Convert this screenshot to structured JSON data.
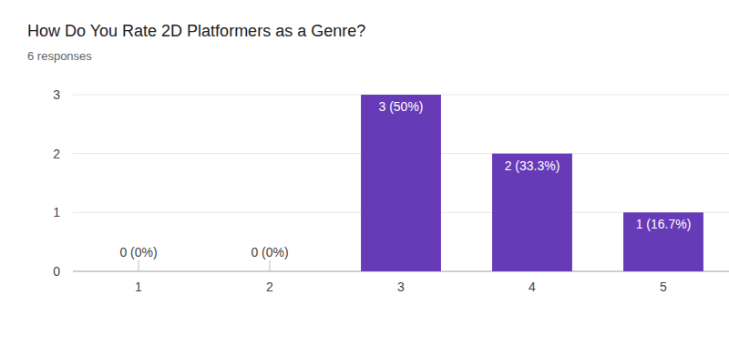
{
  "chart_data": {
    "type": "bar",
    "title": "How Do You Rate 2D Platformers as a Genre?",
    "subtitle": "6 responses",
    "categories": [
      "1",
      "2",
      "3",
      "4",
      "5"
    ],
    "values": [
      0,
      0,
      3,
      2,
      1
    ],
    "value_labels": [
      "0 (0%)",
      "0 (0%)",
      "3 (50%)",
      "2 (33.3%)",
      "1 (16.7%)"
    ],
    "color": "#673ab7",
    "ylim": [
      0,
      3
    ],
    "yticks": [
      0,
      1,
      2,
      3
    ],
    "grid": true,
    "data_labels": true
  }
}
